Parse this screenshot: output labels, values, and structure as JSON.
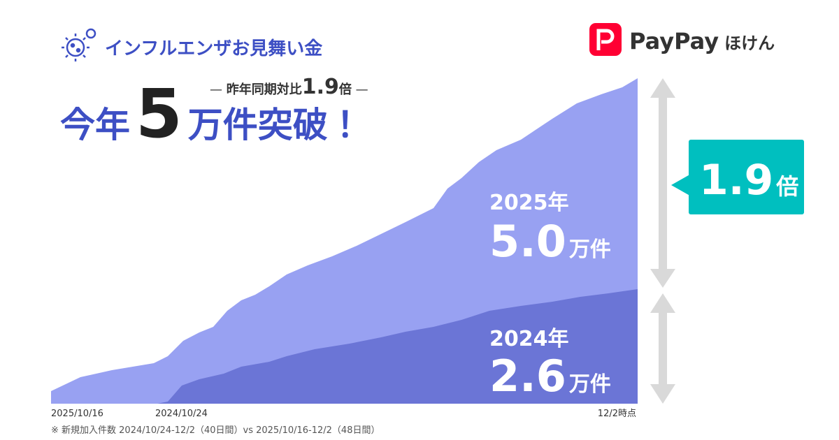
{
  "header": {
    "title": "インフルエンザお見舞い金",
    "logo_main": "PayPay",
    "logo_sub": "ほけん"
  },
  "headline": {
    "sub_prefix": "昨年同期対比",
    "sub_value": "1.9",
    "sub_unit": "倍",
    "lead": "今年",
    "number": "5",
    "tail": "万件突破！"
  },
  "comparison": {
    "badge_value": "1.9",
    "badge_unit": "倍",
    "current": {
      "year": "2025年",
      "value": "5.0",
      "unit": "万件"
    },
    "previous": {
      "year": "2024年",
      "value": "2.6",
      "unit": "万件"
    }
  },
  "axis": {
    "start_current": "2025/10/16",
    "start_previous": "2024/10/24",
    "end": "12/2時点"
  },
  "footnote": "※ 新規加入件数 2024/10/24-12/2（40日間）vs 2025/10/16-12/2（48日間）"
}
